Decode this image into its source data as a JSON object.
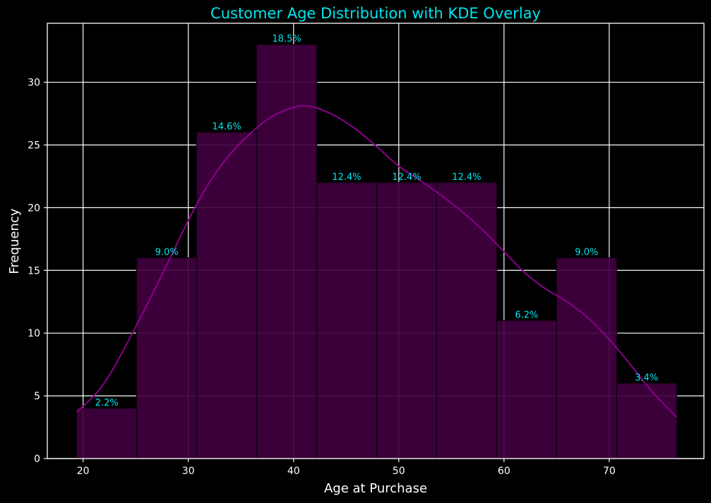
{
  "chart_data": {
    "type": "bar",
    "title": "Customer Age Distribution with KDE Overlay",
    "xlabel": "Age at Purchase",
    "ylabel": "Frequency",
    "xlim": [
      16.6,
      79
    ],
    "ylim": [
      0,
      34.7
    ],
    "xticks": [
      20,
      30,
      40,
      50,
      60,
      70
    ],
    "yticks": [
      0,
      5,
      10,
      15,
      20,
      25,
      30
    ],
    "grid": true,
    "bins": [
      {
        "x0": 19.4,
        "x1": 25.1,
        "count": 4,
        "label": "2.2%"
      },
      {
        "x0": 25.1,
        "x1": 30.8,
        "count": 16,
        "label": "9.0%"
      },
      {
        "x0": 30.8,
        "x1": 36.5,
        "count": 26,
        "label": "14.6%"
      },
      {
        "x0": 36.5,
        "x1": 42.2,
        "count": 33,
        "label": "18.5%"
      },
      {
        "x0": 42.2,
        "x1": 47.9,
        "count": 22,
        "label": "12.4%"
      },
      {
        "x0": 47.9,
        "x1": 53.6,
        "count": 22,
        "label": "12.4%"
      },
      {
        "x0": 53.6,
        "x1": 59.3,
        "count": 22,
        "label": "12.4%"
      },
      {
        "x0": 59.3,
        "x1": 65.0,
        "count": 11,
        "label": "6.2%"
      },
      {
        "x0": 65.0,
        "x1": 70.7,
        "count": 16,
        "label": "9.0%"
      },
      {
        "x0": 70.7,
        "x1": 76.4,
        "count": 6,
        "label": "3.4%"
      }
    ],
    "kde": {
      "x": [
        19.4,
        22,
        25,
        28,
        30,
        32,
        34,
        36,
        38,
        40,
        41,
        42,
        44,
        46,
        48,
        50,
        52,
        54,
        56,
        58,
        60,
        62,
        64,
        66,
        68,
        70,
        72,
        74,
        76.4
      ],
      "y": [
        3.7,
        6.0,
        10.5,
        15.5,
        19.0,
        22.0,
        24.3,
        26.0,
        27.3,
        28.0,
        28.1,
        28.0,
        27.3,
        26.2,
        24.8,
        23.3,
        22.2,
        21.0,
        19.7,
        18.2,
        16.5,
        14.8,
        13.5,
        12.5,
        11.2,
        9.5,
        7.5,
        5.4,
        3.3
      ]
    },
    "colors": {
      "bar_fill": "#40003f",
      "bar_edge": "#150015",
      "kde_line": "#8b008b",
      "grid": "#ffffff",
      "title": "#00e5ee",
      "bar_label": "#00e5ee",
      "axis": "#ffffff",
      "background": "#000000"
    }
  }
}
